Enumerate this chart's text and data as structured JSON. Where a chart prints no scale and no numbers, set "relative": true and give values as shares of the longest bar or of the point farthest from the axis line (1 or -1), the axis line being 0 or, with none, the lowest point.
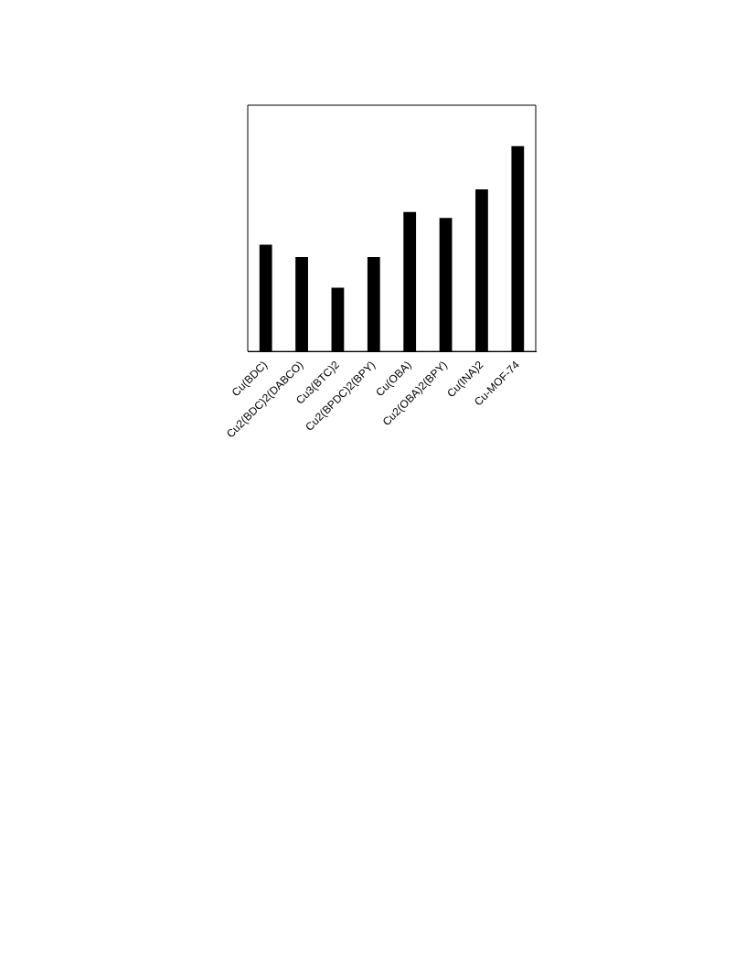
{
  "chart_data": {
    "type": "bar",
    "relative": true,
    "categories": [
      "Cu(BDC)",
      "Cu2(BDC)2(DABCO)",
      "Cu3(BTC)2",
      "Cu2(BPDC)2(BPY)",
      "Cu(OBA)",
      "Cu2(OBA)2(BPY)",
      "Cu(INA)2",
      "Cu-MOF-74"
    ],
    "values": [
      0.52,
      0.46,
      0.31,
      0.46,
      0.68,
      0.65,
      0.79,
      1
    ],
    "color": "#000000",
    "grid": false,
    "legend": false
  }
}
